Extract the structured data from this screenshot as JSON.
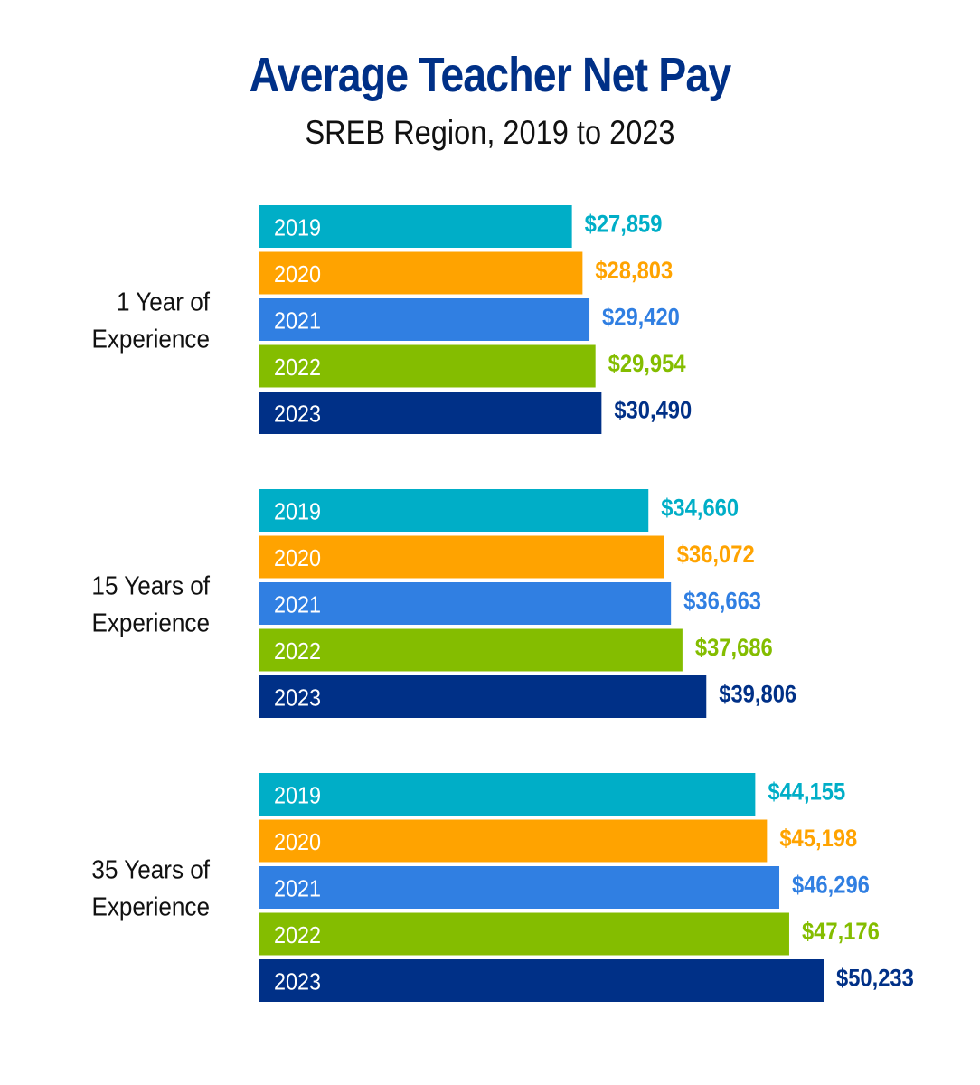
{
  "chart_data": {
    "type": "bar",
    "orientation": "horizontal",
    "title": "Average Teacher Net Pay",
    "subtitle": "SREB Region, 2019 to 2023",
    "title_color": "#003087",
    "groups": [
      {
        "label_lines": [
          "1 Year of",
          "Experience"
        ],
        "bars": [
          {
            "year": "2019",
            "value": 27859,
            "label": "$27,859"
          },
          {
            "year": "2020",
            "value": 28803,
            "label": "$28,803"
          },
          {
            "year": "2021",
            "value": 29420,
            "label": "$29,420"
          },
          {
            "year": "2022",
            "value": 29954,
            "label": "$29,954"
          },
          {
            "year": "2023",
            "value": 30490,
            "label": "$30,490"
          }
        ]
      },
      {
        "label_lines": [
          "15 Years of",
          "Experience"
        ],
        "bars": [
          {
            "year": "2019",
            "value": 34660,
            "label": "$34,660"
          },
          {
            "year": "2020",
            "value": 36072,
            "label": "$36,072"
          },
          {
            "year": "2021",
            "value": 36663,
            "label": "$36,663"
          },
          {
            "year": "2022",
            "value": 37686,
            "label": "$37,686"
          },
          {
            "year": "2023",
            "value": 39806,
            "label": "$39,806"
          }
        ]
      },
      {
        "label_lines": [
          "35 Years of",
          "Experience"
        ],
        "bars": [
          {
            "year": "2019",
            "value": 44155,
            "label": "$44,155"
          },
          {
            "year": "2020",
            "value": 45198,
            "label": "$45,198"
          },
          {
            "year": "2021",
            "value": 46296,
            "label": "$46,296"
          },
          {
            "year": "2022",
            "value": 47176,
            "label": "$47,176"
          },
          {
            "year": "2023",
            "value": 50233,
            "label": "$50,233"
          }
        ]
      }
    ],
    "colors": {
      "2019": "#00AEC7",
      "2020": "#FFA300",
      "2021": "#307FE2",
      "2022": "#84BD00",
      "2023": "#003087"
    },
    "xlim": [
      0,
      50233
    ],
    "grid": false,
    "legend": "none"
  }
}
